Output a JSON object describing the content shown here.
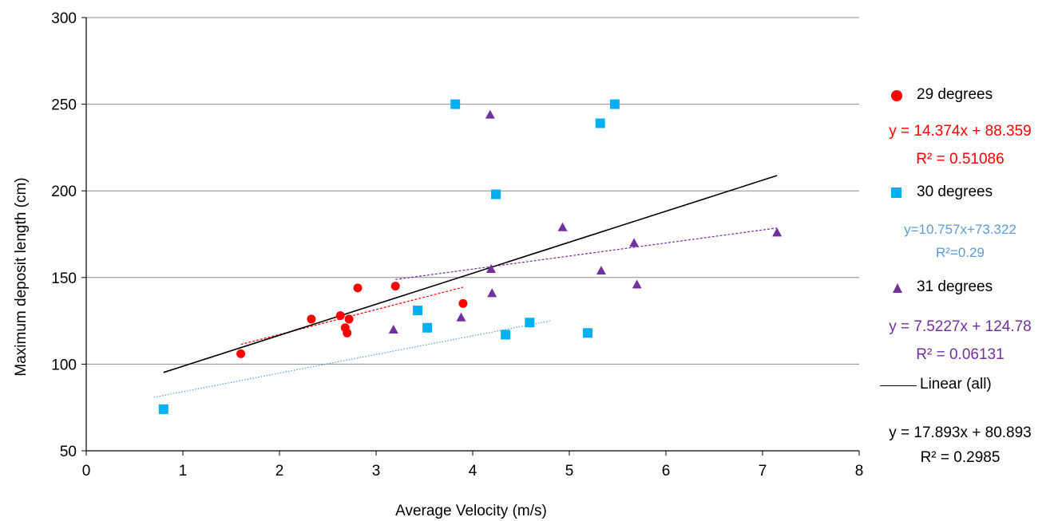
{
  "chart_data": {
    "type": "scatter",
    "xlabel": "Average Velocity (m/s)",
    "ylabel": "Maximum deposit length (cm)",
    "xlim": [
      0,
      8
    ],
    "ylim": [
      50,
      300
    ],
    "xticks": [
      0,
      1,
      2,
      3,
      4,
      5,
      6,
      7,
      8
    ],
    "yticks": [
      50,
      100,
      150,
      200,
      250,
      300
    ],
    "grid": "horizontal",
    "legend_position": "right",
    "series": [
      {
        "name": "29 degrees",
        "marker": "circle",
        "color": "#ff0000",
        "points": [
          [
            1.6,
            106
          ],
          [
            2.33,
            126
          ],
          [
            2.63,
            128
          ],
          [
            2.68,
            121
          ],
          [
            2.7,
            118
          ],
          [
            2.72,
            126
          ],
          [
            2.81,
            144
          ],
          [
            3.2,
            145
          ],
          [
            3.9,
            135
          ]
        ],
        "trendline": {
          "x": [
            1.6,
            3.9
          ],
          "style": "dashed",
          "color": "#ff0000",
          "equation": "y = 14.374x + 88.359",
          "r2": "R² = 0.51086"
        }
      },
      {
        "name": "30 degrees",
        "marker": "square",
        "color": "#00b0f0",
        "points": [
          [
            0.8,
            74
          ],
          [
            3.43,
            131
          ],
          [
            3.53,
            121
          ],
          [
            3.82,
            250
          ],
          [
            4.24,
            198
          ],
          [
            4.34,
            117
          ],
          [
            4.59,
            124
          ],
          [
            5.19,
            118
          ],
          [
            5.32,
            239
          ],
          [
            5.47,
            250
          ]
        ],
        "trendline": {
          "x": [
            0.7,
            4.8
          ],
          "style": "dotted",
          "color": "#5b9bd5",
          "equation": "y=10.757x+73.322",
          "r2": "R²=0.29"
        }
      },
      {
        "name": "31 degrees",
        "marker": "triangle",
        "color": "#7030a0",
        "points": [
          [
            3.18,
            120
          ],
          [
            3.88,
            127
          ],
          [
            4.18,
            244
          ],
          [
            4.19,
            155
          ],
          [
            4.2,
            141
          ],
          [
            4.93,
            179
          ],
          [
            5.33,
            154
          ],
          [
            5.67,
            170
          ],
          [
            5.7,
            146
          ],
          [
            7.15,
            176
          ]
        ],
        "trendline": {
          "x": [
            3.2,
            7.15
          ],
          "style": "dashed",
          "color": "#7030a0",
          "equation": "y = 7.5227x + 124.78",
          "r2": "R² = 0.06131"
        }
      }
    ],
    "linear_all": {
      "name": "Linear  (all)",
      "color": "#000000",
      "x": [
        0.8,
        7.15
      ],
      "slope": 17.893,
      "intercept": 80.893,
      "equation": "y = 17.893x + 80.893",
      "r2": "R² = 0.2985"
    }
  }
}
